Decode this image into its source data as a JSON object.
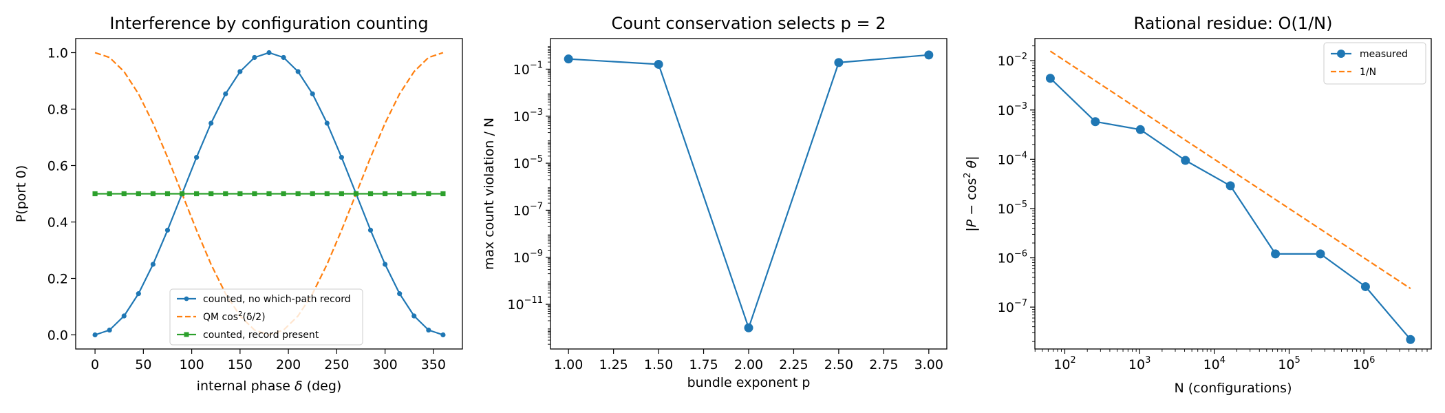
{
  "chart_data": [
    {
      "type": "line",
      "title": "Interference by configuration counting",
      "xlabel": "internal phase δ (deg)",
      "ylabel": "P(port 0)",
      "xlim": [
        -20,
        380
      ],
      "ylim": [
        -0.05,
        1.05
      ],
      "xticks": [
        0,
        50,
        100,
        150,
        200,
        250,
        300,
        350
      ],
      "yticks": [
        0.0,
        0.2,
        0.4,
        0.6,
        0.8,
        1.0
      ],
      "ytick_labels": [
        "0.0",
        "0.2",
        "0.4",
        "0.6",
        "0.8",
        "1.0"
      ],
      "legend_position": "lower-right",
      "series": [
        {
          "name": "counted, no which-path record",
          "color": "#1f77b4",
          "style": "solid",
          "marker": "circle-small",
          "x": [
            0,
            15,
            30,
            45,
            60,
            75,
            90,
            105,
            120,
            135,
            150,
            165,
            180,
            195,
            210,
            225,
            240,
            255,
            270,
            285,
            300,
            315,
            330,
            345,
            360
          ],
          "y": [
            0.0,
            0.017,
            0.067,
            0.146,
            0.25,
            0.371,
            0.5,
            0.629,
            0.75,
            0.854,
            0.933,
            0.983,
            1.0,
            0.983,
            0.933,
            0.854,
            0.75,
            0.629,
            0.5,
            0.371,
            0.25,
            0.146,
            0.067,
            0.017,
            0.0
          ]
        },
        {
          "name": "QM cos²(δ/2)",
          "color": "#ff7f0e",
          "style": "dashed",
          "marker": "none",
          "x": [
            0,
            15,
            30,
            45,
            60,
            75,
            90,
            105,
            120,
            135,
            150,
            165,
            180,
            195,
            210,
            225,
            240,
            255,
            270,
            285,
            300,
            315,
            330,
            345,
            360
          ],
          "y": [
            1.0,
            0.983,
            0.933,
            0.854,
            0.75,
            0.629,
            0.5,
            0.371,
            0.25,
            0.146,
            0.067,
            0.017,
            0.0,
            0.017,
            0.067,
            0.146,
            0.25,
            0.371,
            0.5,
            0.629,
            0.75,
            0.854,
            0.933,
            0.983,
            1.0
          ]
        },
        {
          "name": "counted, record present",
          "color": "#2ca02c",
          "style": "solid",
          "marker": "square-small",
          "x": [
            0,
            15,
            30,
            45,
            60,
            75,
            90,
            105,
            120,
            135,
            150,
            165,
            180,
            195,
            210,
            225,
            240,
            255,
            270,
            285,
            300,
            315,
            330,
            345,
            360
          ],
          "y": [
            0.5,
            0.5,
            0.5,
            0.5,
            0.5,
            0.5,
            0.5,
            0.5,
            0.5,
            0.5,
            0.5,
            0.5,
            0.5,
            0.5,
            0.5,
            0.5,
            0.5,
            0.5,
            0.5,
            0.5,
            0.5,
            0.5,
            0.5,
            0.5,
            0.5
          ]
        }
      ]
    },
    {
      "type": "line",
      "title": "Count conservation selects p = 2",
      "xlabel": "bundle exponent p",
      "ylabel": "max count violation / N",
      "xlim": [
        0.9,
        3.1
      ],
      "yscale": "log",
      "ylim_log10": [
        -12.9,
        0.3
      ],
      "xticks": [
        1.0,
        1.25,
        1.5,
        1.75,
        2.0,
        2.25,
        2.5,
        2.75,
        3.0
      ],
      "xtick_labels": [
        "1.00",
        "1.25",
        "1.50",
        "1.75",
        "2.00",
        "2.25",
        "2.50",
        "2.75",
        "3.00"
      ],
      "yticks_exp": [
        -11,
        -9,
        -7,
        -5,
        -3,
        -1
      ],
      "series": [
        {
          "color": "#1f77b4",
          "style": "solid",
          "marker": "circle",
          "x": [
            1.0,
            1.5,
            2.0,
            2.5,
            3.0
          ],
          "y": [
            0.27,
            0.16,
            1e-12,
            0.19,
            0.4
          ]
        }
      ]
    },
    {
      "type": "line",
      "title": "Rational residue: O(1/N)",
      "xlabel": "N (configurations)",
      "ylabel": "|P − cos² θ|",
      "xscale": "log",
      "yscale": "log",
      "xlim_log10": [
        1.6,
        6.9
      ],
      "ylim_log10": [
        -7.85,
        -1.55
      ],
      "xticks_exp": [
        2,
        3,
        4,
        5,
        6
      ],
      "yticks_exp": [
        -7,
        -6,
        -5,
        -4,
        -3,
        -2
      ],
      "legend_position": "top-right",
      "series": [
        {
          "name": "measured",
          "color": "#1f77b4",
          "style": "solid",
          "marker": "circle",
          "x": [
            64,
            256,
            1024,
            4096,
            16384,
            65536,
            262144,
            1048576,
            4194304
          ],
          "y": [
            0.0044,
            0.00058,
            0.0004,
            9.5e-05,
            2.9e-05,
            1.2e-06,
            1.2e-06,
            2.6e-07,
            2.2e-08
          ]
        },
        {
          "name": "1/N",
          "color": "#ff7f0e",
          "style": "dashed",
          "marker": "none",
          "x": [
            64,
            4194304
          ],
          "y": [
            0.015625,
            2.38e-07
          ]
        }
      ]
    }
  ]
}
